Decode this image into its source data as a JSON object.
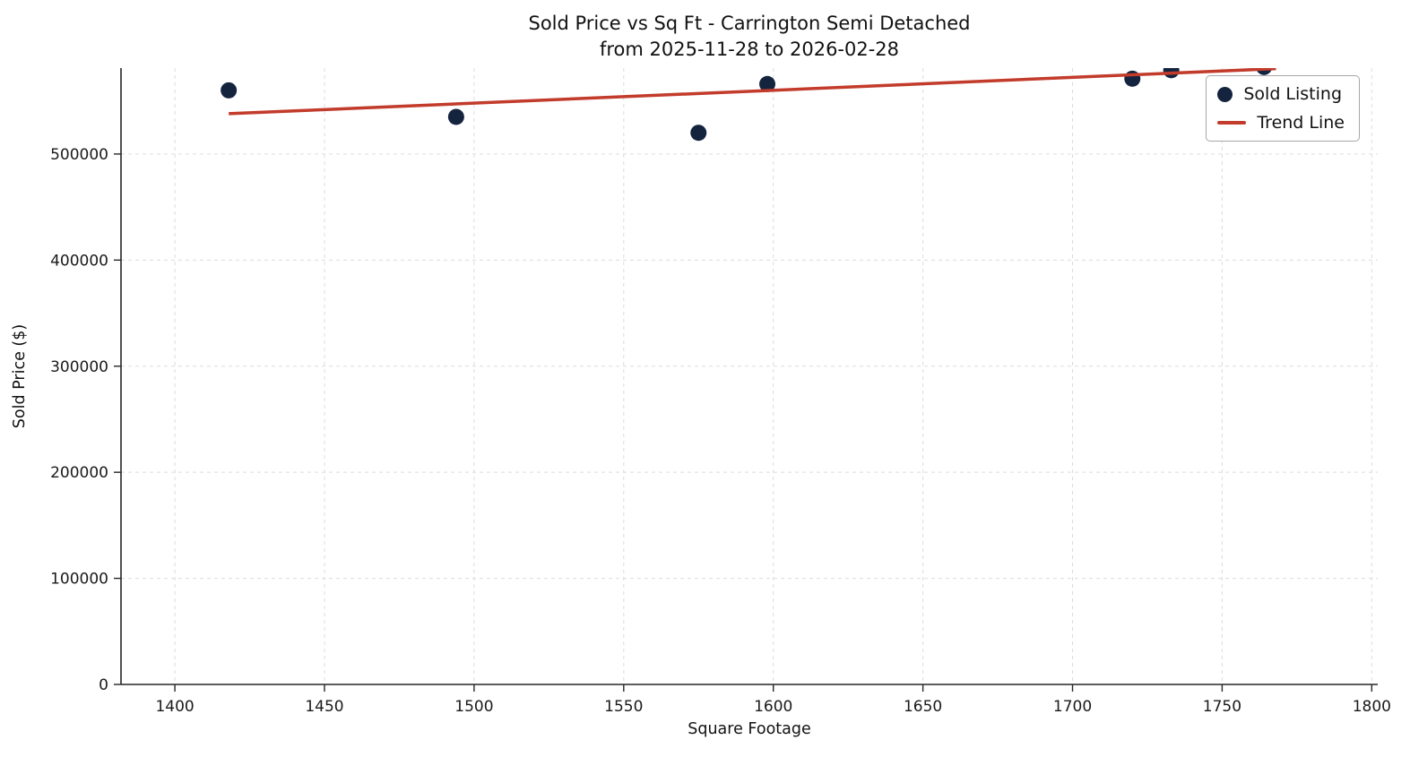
{
  "chart_data": {
    "type": "scatter",
    "title": "Sold Price vs Sq Ft - Carrington Semi Detached\nfrom 2025-11-28 to 2026-02-28",
    "title_line1": "Sold Price vs Sq Ft - Carrington Semi Detached",
    "title_line2": "from 2025-11-28 to 2026-02-28",
    "xlabel": "Square Footage",
    "ylabel": "Sold Price ($)",
    "xlim": [
      1382,
      1802
    ],
    "ylim": [
      0,
      581000
    ],
    "x_ticks": [
      1400,
      1450,
      1500,
      1550,
      1600,
      1650,
      1700,
      1750,
      1800
    ],
    "y_ticks": [
      0,
      100000,
      200000,
      300000,
      400000,
      500000
    ],
    "grid": true,
    "grid_style": "dashed",
    "legend_position": "upper right",
    "series": [
      {
        "name": "Sold Listing",
        "type": "scatter",
        "color": "#14243e",
        "points": [
          [
            1418,
            560000
          ],
          [
            1494,
            535000
          ],
          [
            1575,
            520000
          ],
          [
            1598,
            566000
          ],
          [
            1720,
            571000
          ],
          [
            1733,
            579000
          ],
          [
            1764,
            582000
          ]
        ]
      },
      {
        "name": "Trend Line",
        "type": "line",
        "color": "#c23b2b",
        "points": [
          [
            1418,
            538000
          ],
          [
            1768,
            580500
          ]
        ]
      }
    ]
  }
}
